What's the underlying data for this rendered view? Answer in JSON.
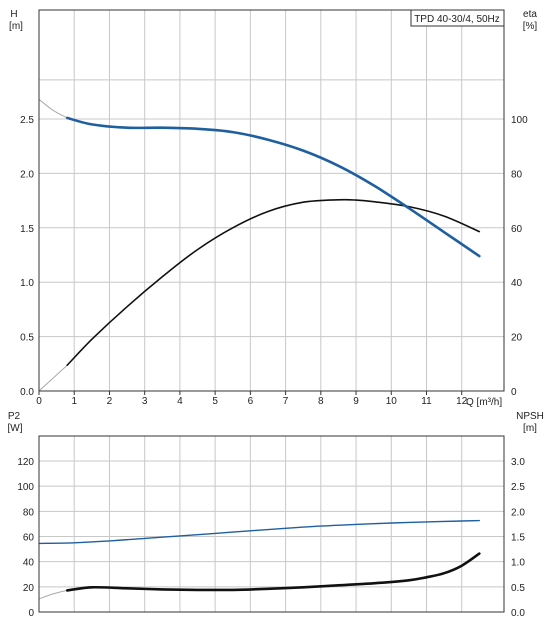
{
  "chart_data": [
    {
      "type": "line",
      "title": "TPD 40-30/4, 50Hz",
      "x_axis": {
        "label": "Q [m³/h]",
        "range": [
          0,
          13.2
        ],
        "ticks": [
          0,
          1,
          2,
          3,
          4,
          5,
          6,
          7,
          8,
          9,
          10,
          11,
          12
        ]
      },
      "y_axis_left": {
        "label_top": "H",
        "label_unit": "[m]",
        "range": [
          0,
          3.0
        ],
        "ticks": [
          "0.0",
          "0.5",
          "1.0",
          "1.5",
          "2.0",
          "2.5"
        ]
      },
      "y_axis_right": {
        "label_top": "eta",
        "label_unit": "[%]",
        "range": [
          0,
          120
        ],
        "ticks": [
          "0",
          "20",
          "40",
          "60",
          "80",
          "100"
        ]
      },
      "grid": true,
      "series": [
        {
          "name": "H",
          "axis": "left",
          "color": "#1f5fa0",
          "x": [
            0.8,
            1.5,
            2.5,
            3.5,
            4.5,
            5.5,
            6.5,
            7.5,
            8.5,
            9.5,
            10.5,
            11.5,
            12.5
          ],
          "y": [
            2.51,
            2.45,
            2.42,
            2.42,
            2.41,
            2.38,
            2.31,
            2.21,
            2.07,
            1.89,
            1.68,
            1.46,
            1.24
          ]
        },
        {
          "name": "eta",
          "axis": "right",
          "color": "#111111",
          "x": [
            0.8,
            1.5,
            2.5,
            3.5,
            4.5,
            5.5,
            6.5,
            7.5,
            8.5,
            9.0,
            9.5,
            10.5,
            11.5,
            12.5
          ],
          "y": [
            9.5,
            19,
            31,
            42,
            52,
            60,
            66,
            69.4,
            70.3,
            70.2,
            69.6,
            67.8,
            64.3,
            58.6
          ]
        }
      ],
      "extrapolation": {
        "H": {
          "x": [
            0,
            0.4,
            0.8
          ],
          "y": [
            2.68,
            2.58,
            2.51
          ]
        },
        "eta": {
          "x": [
            0,
            0.8
          ],
          "y": [
            0,
            9.5
          ]
        }
      }
    },
    {
      "type": "line",
      "x_axis": {
        "range": [
          0,
          13.2
        ]
      },
      "y_axis_left": {
        "label_top": "P2",
        "label_unit": "[W]",
        "range": [
          0,
          140
        ],
        "ticks": [
          "0",
          "20",
          "40",
          "60",
          "80",
          "100",
          "120"
        ]
      },
      "y_axis_right": {
        "label_top": "NPSH",
        "label_unit": "[m]",
        "range": [
          0,
          3.5
        ],
        "ticks": [
          "0.0",
          "0.5",
          "1.0",
          "1.5",
          "2.0",
          "2.5",
          "3.0"
        ]
      },
      "grid": true,
      "series": [
        {
          "name": "P2",
          "axis": "left",
          "color": "#1f5fa0",
          "x": [
            0,
            1,
            2,
            3,
            4,
            5,
            6,
            7,
            8,
            9,
            10,
            11,
            12,
            12.5
          ],
          "y": [
            54.5,
            55,
            56.5,
            58.5,
            60.5,
            62.5,
            64.5,
            66.5,
            68.3,
            69.6,
            70.7,
            71.6,
            72.3,
            72.6
          ]
        },
        {
          "name": "NPSH",
          "axis": "right",
          "color": "#111111",
          "x": [
            0.8,
            1.5,
            2.5,
            3.5,
            4.5,
            5.5,
            6.5,
            7.5,
            8.5,
            9.5,
            10.5,
            11.0,
            11.5,
            12.0,
            12.5
          ],
          "y": [
            0.43,
            0.49,
            0.47,
            0.45,
            0.44,
            0.44,
            0.46,
            0.49,
            0.53,
            0.57,
            0.63,
            0.69,
            0.77,
            0.92,
            1.16
          ]
        }
      ],
      "extrapolation": {
        "NPSH": {
          "x": [
            0,
            0.4,
            0.8
          ],
          "y": [
            0.26,
            0.36,
            0.43
          ]
        }
      }
    }
  ]
}
